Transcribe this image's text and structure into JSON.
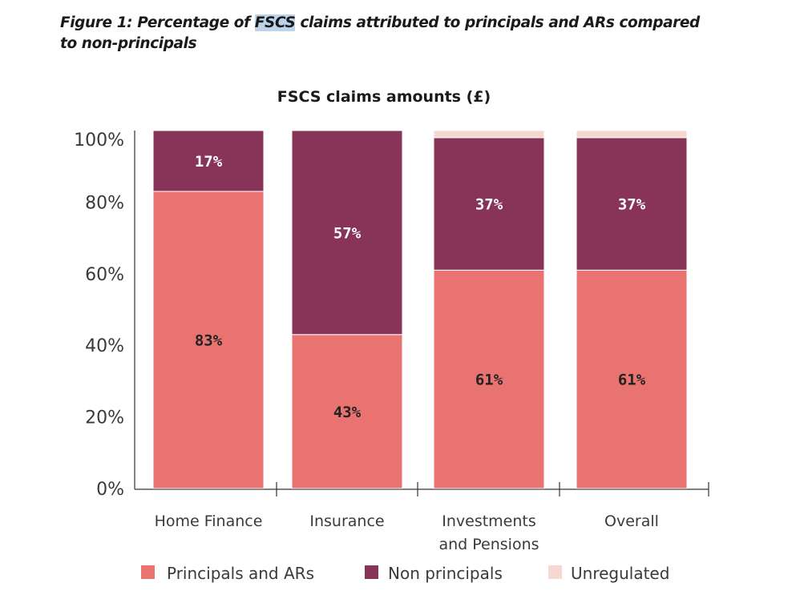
{
  "caption": {
    "prefix": "Figure 1: Percentage of ",
    "highlight": "FSCS",
    "suffix": " claims attributed to principals and ARs compared to non-principals"
  },
  "colors": {
    "principals": "#e97371",
    "non_principals": "#883458",
    "unregulated": "#f6d7d2"
  },
  "chart_data": {
    "type": "bar",
    "stacked": true,
    "title": "FSCS claims amounts (£)",
    "xlabel": "",
    "ylabel": "",
    "ylim": [
      0,
      100
    ],
    "yticks": [
      "0%",
      "20%",
      "40%",
      "60%",
      "80%",
      "100%"
    ],
    "categories": [
      [
        "Home Finance"
      ],
      [
        "Insurance"
      ],
      [
        "Investments",
        "and Pensions"
      ],
      [
        "Overall"
      ]
    ],
    "series": [
      {
        "name": "Principals and ARs",
        "values": [
          83,
          43,
          61,
          61
        ],
        "labels": [
          "83%",
          "43%",
          "61%",
          "61%"
        ]
      },
      {
        "name": "Non principals",
        "values": [
          17,
          57,
          37,
          37
        ],
        "labels": [
          "17%",
          "57%",
          "37%",
          "37%"
        ]
      },
      {
        "name": "Unregulated",
        "values": [
          0,
          0,
          2,
          2
        ],
        "labels": [
          "",
          "",
          "",
          ""
        ]
      }
    ],
    "legend_position": "bottom"
  }
}
